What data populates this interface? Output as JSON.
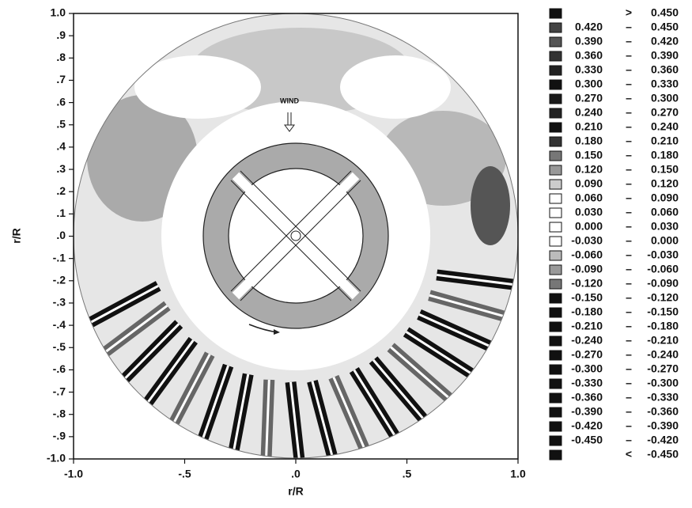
{
  "chart_data": {
    "type": "contour",
    "xlabel": "r/R",
    "ylabel": "r/R",
    "annotation": "WIND",
    "xlim": [
      -1,
      1
    ],
    "ylim": [
      -1,
      1
    ],
    "xticks": [
      {
        "value": -1,
        "label": "-1.0"
      },
      {
        "value": -0.5,
        "label": "-.5"
      },
      {
        "value": 0,
        "label": ".0"
      },
      {
        "value": 0.5,
        "label": ".5"
      },
      {
        "value": 1,
        "label": "1.0"
      }
    ],
    "yticks": [
      {
        "value": 1,
        "label": "1.0"
      },
      {
        "value": 0.9,
        "label": ".9"
      },
      {
        "value": 0.8,
        "label": ".8"
      },
      {
        "value": 0.7,
        "label": ".7"
      },
      {
        "value": 0.6,
        "label": ".6"
      },
      {
        "value": 0.5,
        "label": ".5"
      },
      {
        "value": 0.4,
        "label": ".4"
      },
      {
        "value": 0.3,
        "label": ".3"
      },
      {
        "value": 0.2,
        "label": ".2"
      },
      {
        "value": 0.1,
        "label": ".1"
      },
      {
        "value": 0,
        "label": ".0"
      },
      {
        "value": -0.1,
        "label": "-.1"
      },
      {
        "value": -0.2,
        "label": "-.2"
      },
      {
        "value": -0.3,
        "label": "-.3"
      },
      {
        "value": -0.4,
        "label": "-.4"
      },
      {
        "value": -0.5,
        "label": "-.5"
      },
      {
        "value": -0.6,
        "label": "-.6"
      },
      {
        "value": -0.7,
        "label": "-.7"
      },
      {
        "value": -0.8,
        "label": "-.8"
      },
      {
        "value": -0.9,
        "label": "-.9"
      },
      {
        "value": -1,
        "label": "-1.0"
      }
    ],
    "legend": {
      "above_symbol": ">",
      "below_symbol": "<",
      "range_dash": "–",
      "levels": [
        {
          "value": -0.45,
          "label": "-0.450"
        },
        {
          "value": -0.42,
          "label": "-0.420"
        },
        {
          "value": -0.39,
          "label": "-0.390"
        },
        {
          "value": -0.36,
          "label": "-0.360"
        },
        {
          "value": -0.33,
          "label": "-0.330"
        },
        {
          "value": -0.3,
          "label": "-0.300"
        },
        {
          "value": -0.27,
          "label": "-0.270"
        },
        {
          "value": -0.24,
          "label": "-0.240"
        },
        {
          "value": -0.21,
          "label": "-0.210"
        },
        {
          "value": -0.18,
          "label": "-0.180"
        },
        {
          "value": -0.15,
          "label": "-0.150"
        },
        {
          "value": -0.12,
          "label": "-0.120"
        },
        {
          "value": -0.09,
          "label": "-0.090"
        },
        {
          "value": -0.06,
          "label": "-0.060"
        },
        {
          "value": -0.03,
          "label": "-0.030"
        },
        {
          "value": 0,
          "label": "0.000"
        },
        {
          "value": 0.03,
          "label": "0.030"
        },
        {
          "value": 0.06,
          "label": "0.060"
        },
        {
          "value": 0.09,
          "label": "0.090"
        },
        {
          "value": 0.12,
          "label": "0.120"
        },
        {
          "value": 0.15,
          "label": "0.150"
        },
        {
          "value": 0.18,
          "label": "0.180"
        },
        {
          "value": 0.21,
          "label": "0.210"
        },
        {
          "value": 0.24,
          "label": "0.240"
        },
        {
          "value": 0.27,
          "label": "0.270"
        },
        {
          "value": 0.3,
          "label": "0.300"
        },
        {
          "value": 0.33,
          "label": "0.330"
        },
        {
          "value": 0.36,
          "label": "0.360"
        },
        {
          "value": 0.39,
          "label": "0.390"
        },
        {
          "value": 0.42,
          "label": "0.420"
        },
        {
          "value": 0.45,
          "label": "0.450"
        }
      ],
      "colors": [
        "#111111",
        "#444444",
        "#555555",
        "#333333",
        "#222222",
        "#111111",
        "#1a1a1a",
        "#222222",
        "#111111",
        "#333333",
        "#777777",
        "#999999",
        "#cccccc",
        "#ffffff",
        "#ffffff",
        "#ffffff",
        "#ffffff",
        "#bbbbbb",
        "#999999",
        "#777777",
        "#111111",
        "#111111",
        "#111111",
        "#111111",
        "#111111",
        "#111111",
        "#111111",
        "#111111",
        "#111111",
        "#111111",
        "#111111",
        "#111111"
      ]
    }
  }
}
